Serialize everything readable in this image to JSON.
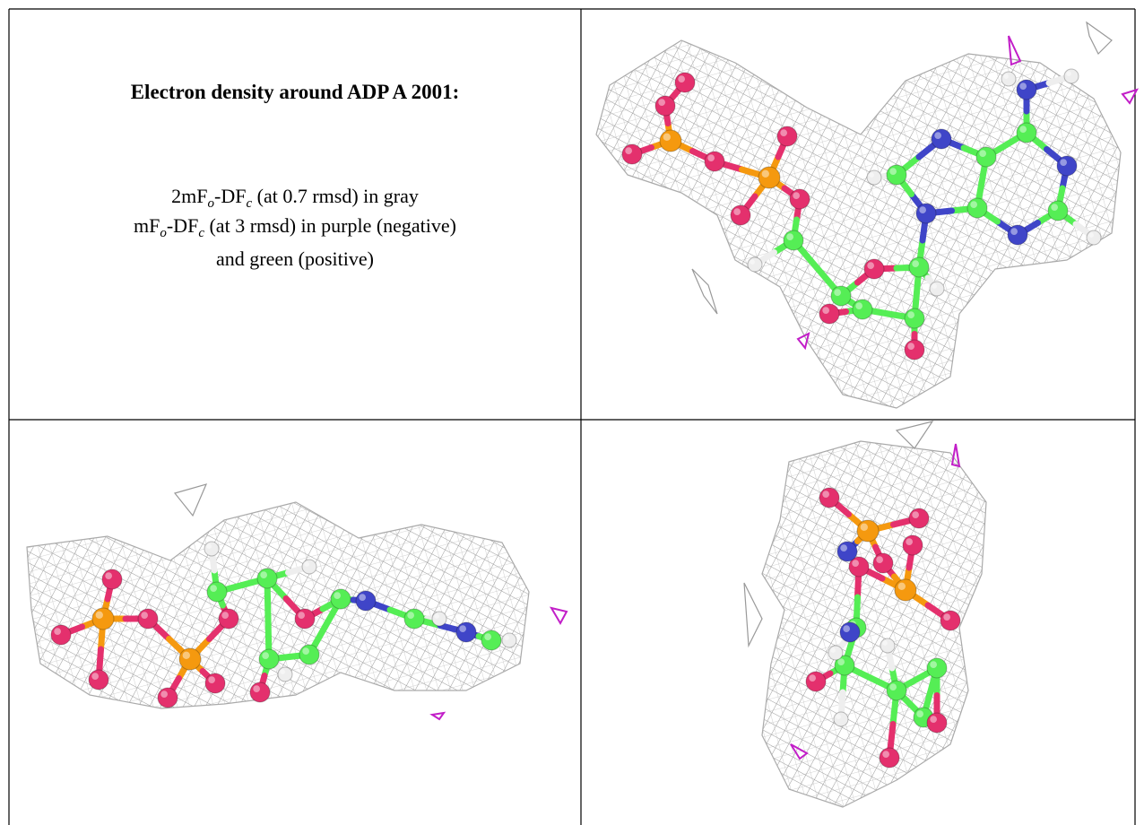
{
  "title": "Electron density around ADP A 2001:",
  "legend": {
    "lines": [
      [
        "2mF",
        "o",
        "-DF",
        "c",
        " (at 0.7 rmsd) in gray"
      ],
      [
        "mF",
        "o",
        "-DF",
        "c",
        " (at 3 rmsd) in purple (negative)"
      ],
      [
        "and green (positive)"
      ]
    ]
  }
}
